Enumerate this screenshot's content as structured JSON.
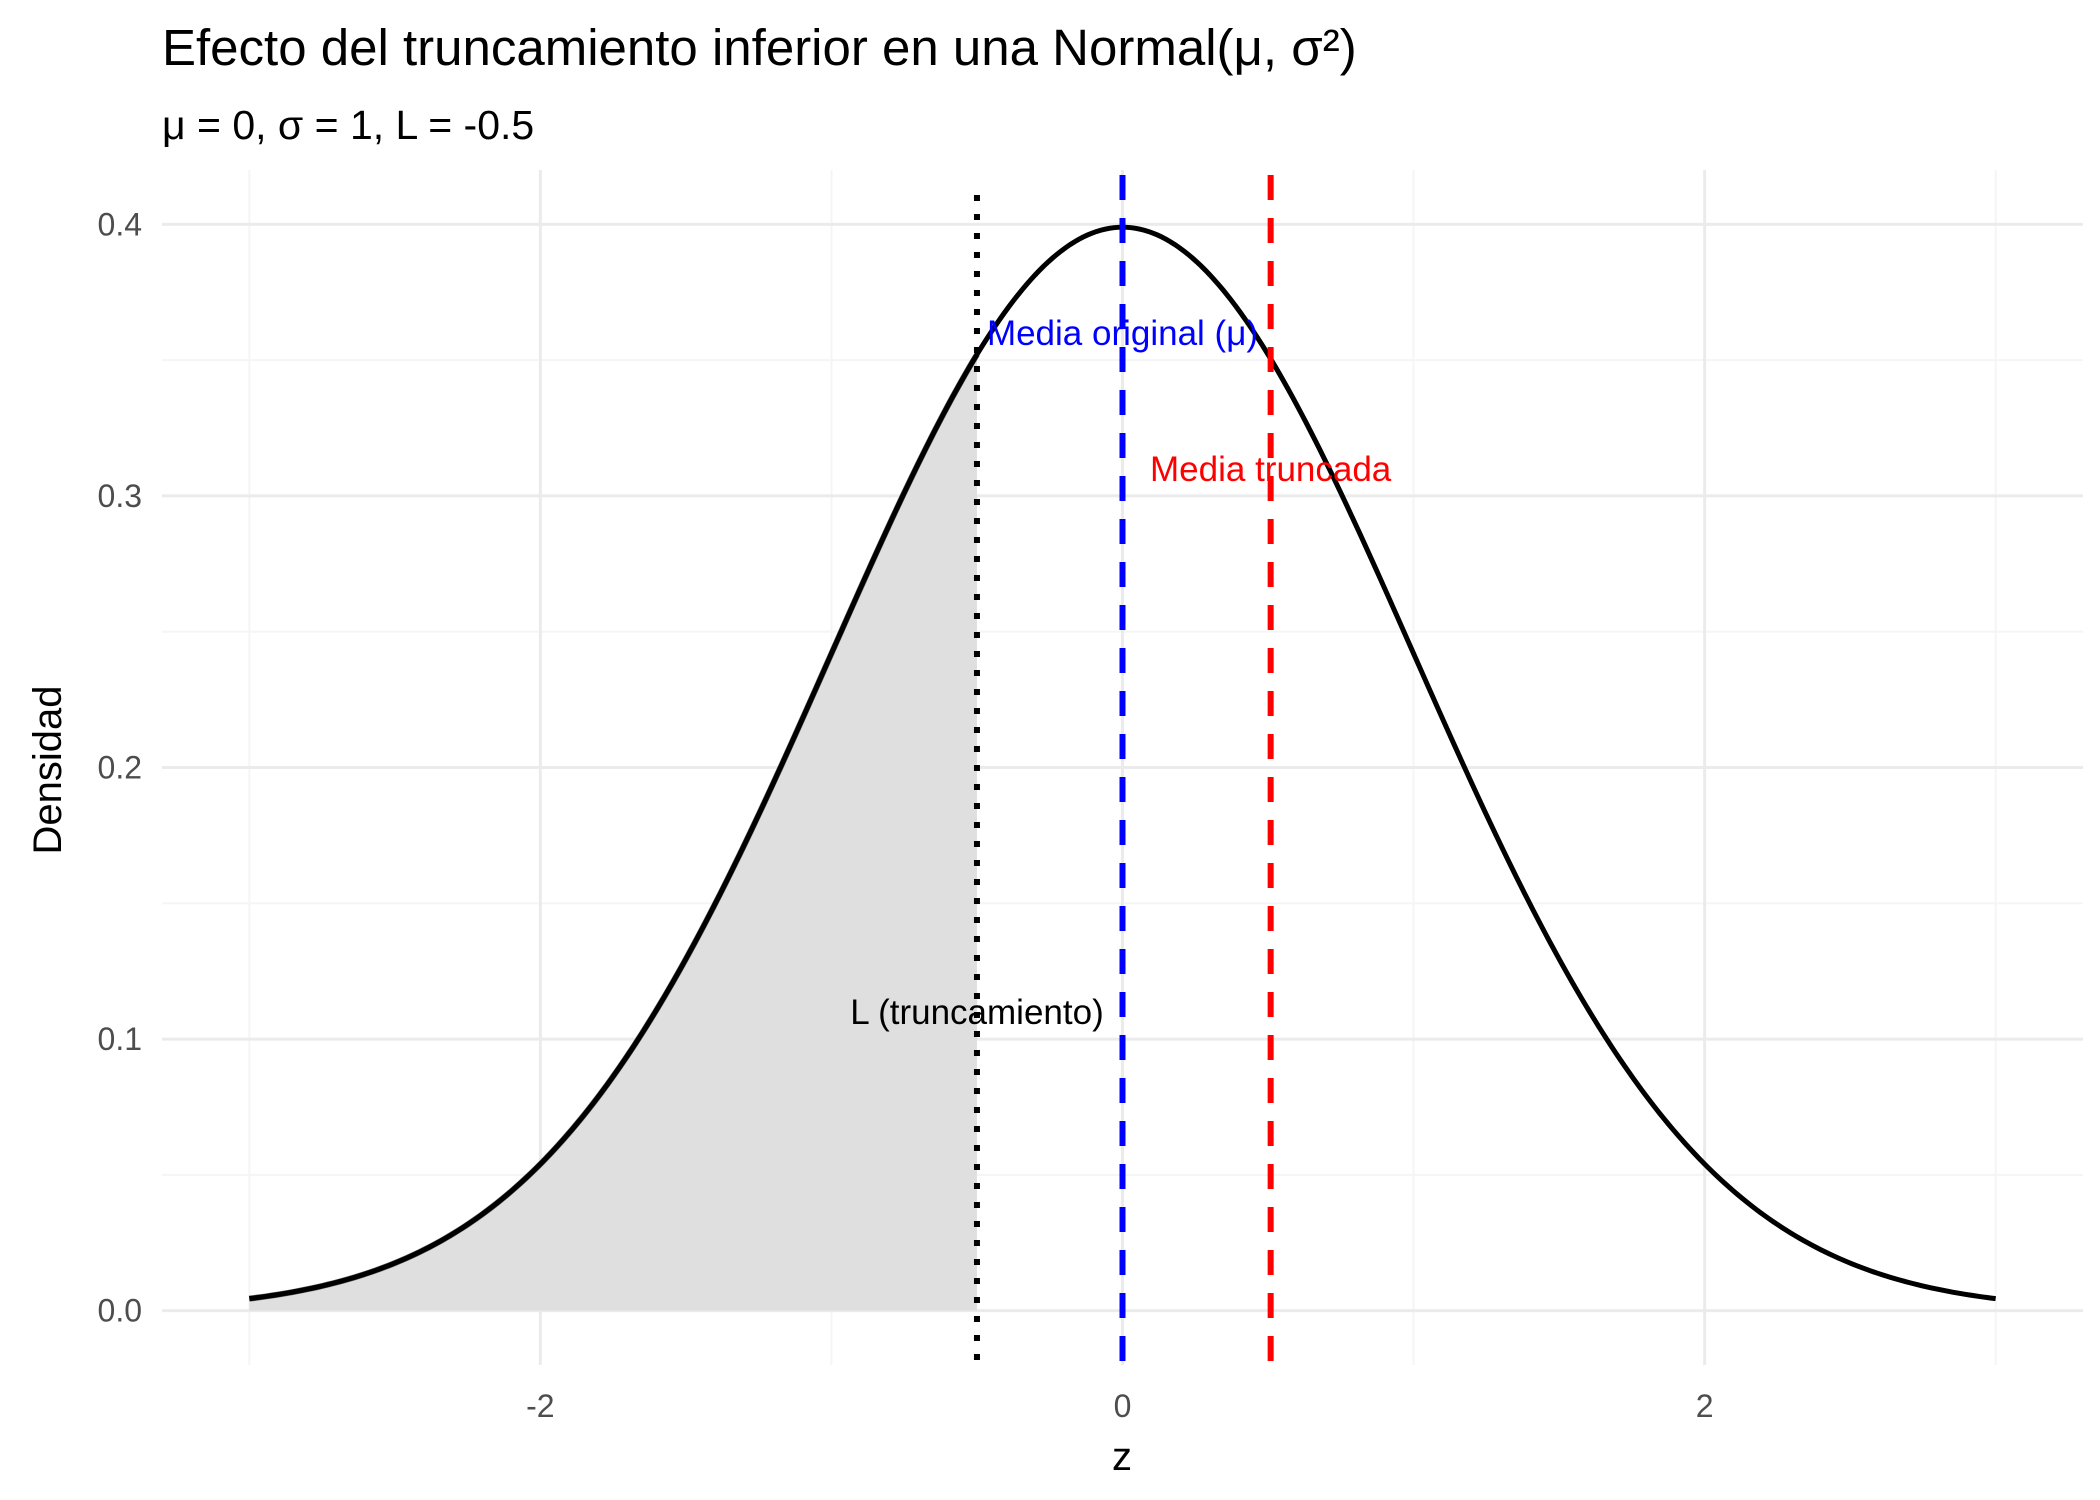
{
  "chart_data": {
    "type": "line",
    "title": "Efecto del truncamiento inferior en una Normal(μ, σ²)",
    "subtitle": "μ = 0, σ = 1, L = -0.5",
    "xlabel": "z",
    "ylabel": "Densidad",
    "xlim": [
      -3.3,
      3.3
    ],
    "ylim": [
      -0.02,
      0.42
    ],
    "x_ticks": [
      -2,
      0,
      2
    ],
    "x_tick_labels": [
      "-2",
      "0",
      "2"
    ],
    "x_minor_ticks": [
      -3,
      -1,
      1,
      3
    ],
    "y_ticks": [
      0.0,
      0.1,
      0.2,
      0.3,
      0.4
    ],
    "y_tick_labels": [
      "0.0",
      "0.1",
      "0.2",
      "0.3",
      "0.4"
    ],
    "y_minor_ticks": [
      0.05,
      0.15,
      0.25,
      0.35
    ],
    "grid": true,
    "series": [
      {
        "curve": "normal-density",
        "mu": 0,
        "sigma": 1,
        "x_range": [
          -3,
          3
        ],
        "color": "#000000",
        "x": [
          -3,
          -2.5,
          -2,
          -1.5,
          -1,
          -0.5,
          0,
          0.5,
          1,
          1.5,
          2,
          2.5,
          3
        ],
        "y": [
          0.0044,
          0.0175,
          0.054,
          0.1295,
          0.242,
          0.3521,
          0.3989,
          0.3521,
          0.242,
          0.1295,
          0.054,
          0.0175,
          0.0044
        ]
      }
    ],
    "shaded_region": {
      "x_from": -3,
      "x_to": -0.5,
      "fill": "#dfdfdf",
      "edge": "#666666"
    },
    "vlines": [
      {
        "x": -0.5,
        "style": "dotted",
        "color": "#000000"
      },
      {
        "x": 0,
        "style": "dashed",
        "color": "#0000ff"
      },
      {
        "x": 0.509,
        "style": "dashed",
        "color": "#ff0000"
      }
    ],
    "annotations": [
      {
        "text": "Media original (μ)",
        "x": 0,
        "y": 0.36,
        "color": "#0000ff"
      },
      {
        "text": "Media truncada",
        "x": 0.509,
        "y": 0.31,
        "color": "#ff0000"
      },
      {
        "text": "L (truncamiento)",
        "x": -0.5,
        "y": 0.11,
        "color": "#000000"
      }
    ],
    "colors": {
      "grid_major": "#ebebeb",
      "grid_minor": "#f5f5f5",
      "tick_text": "#4d4d4d"
    }
  }
}
